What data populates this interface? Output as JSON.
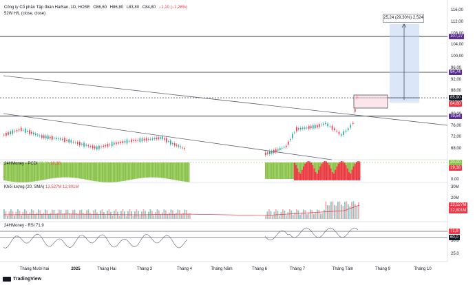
{
  "header": {
    "title": "Công ty Cổ phần Tập đoàn HaiSan, 1D, HOSE",
    "open": "O86,60",
    "high": "H86,80",
    "low": "L83,80",
    "close": "C84,80",
    "change": "−1,10 (−1,28%)",
    "indicator": "52W H/L (close, close)"
  },
  "measure_box": {
    "text": "25,24 (29,30%) 2.524"
  },
  "price_axis": {
    "ticks": [
      "116,00",
      "112,00",
      "108,00",
      "104,00",
      "100,00",
      "96,00",
      "92,00",
      "88,00",
      "84,00",
      "80,00",
      "76,00",
      "72,00",
      "68,00"
    ],
    "tags": [
      {
        "label": "107,27",
        "color": "#5b2e91"
      },
      {
        "label": "94,74",
        "color": "#5b2e91"
      },
      {
        "label": "85,90",
        "color": "#131722"
      },
      {
        "label": "84,80",
        "color": "#f23645"
      },
      {
        "label": "79,54",
        "color": "#5b2e91"
      }
    ]
  },
  "pcdi": {
    "label": "24HMoney - PCDI",
    "v1": "20,00",
    "v2": "19,38",
    "ticks": [
      "0,00"
    ],
    "tags": [
      {
        "label": "20,00",
        "color": "#8bc34a"
      },
      {
        "label": "19,38",
        "color": "#f23645"
      }
    ]
  },
  "volume": {
    "label": "Khối lượng (20, SMA)",
    "v1": "13,527M",
    "v2": "12,801M",
    "ticks": [
      "30M",
      "20M"
    ],
    "tags": [
      {
        "label": "13,527M",
        "color": "#f23645"
      },
      {
        "label": "12,801M",
        "color": "#f23645"
      }
    ]
  },
  "rsi": {
    "label": "24HMoney - RSI",
    "value": "71,9",
    "ticks": [
      "50,0",
      "25,0"
    ],
    "tags": [
      {
        "label": "71,9",
        "color": "#f23645"
      },
      {
        "label": "60,0",
        "color": "#131722"
      }
    ]
  },
  "x_axis": [
    "Tháng Mười hai",
    "2025",
    "Tháng Hai",
    "Tháng 3",
    "Tháng 4",
    "Tháng Năm",
    "Tháng 6",
    "Tháng 7",
    "Tháng Tám",
    "Tháng 9",
    "Tháng 10"
  ],
  "brand": "TradingView",
  "colors": {
    "up": "#26a69a",
    "down": "#f23645",
    "purple": "#5b2e91",
    "green": "#8bc34a",
    "rsi_red": "#f23645"
  }
}
